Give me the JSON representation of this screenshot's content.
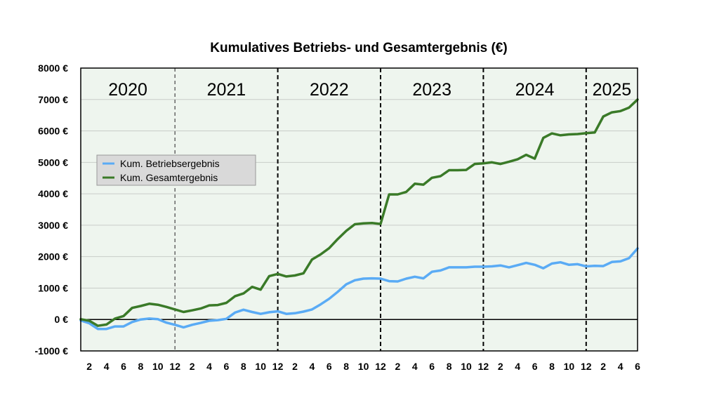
{
  "chart_data": {
    "type": "line",
    "title": "Kumulatives Betriebs- und Gesamtergebnis (€)",
    "xlabel": "",
    "ylabel": "",
    "ylim": [
      -1000,
      8000
    ],
    "y_ticks": [
      -1000,
      0,
      1000,
      2000,
      3000,
      4000,
      5000,
      6000,
      7000,
      8000
    ],
    "y_tick_labels": [
      "-1000 €",
      "0 €",
      "1000 €",
      "2000 €",
      "3000 €",
      "4000 €",
      "5000 €",
      "6000 €",
      "7000 €",
      "8000 €"
    ],
    "x_start_month": "2020-01",
    "x_end_month": "2025-06",
    "x_tick_labels": [
      "2",
      "4",
      "6",
      "8",
      "10",
      "12",
      "2",
      "4",
      "6",
      "8",
      "10",
      "12",
      "2",
      "4",
      "6",
      "8",
      "10",
      "12",
      "2",
      "4",
      "6",
      "8",
      "10",
      "12",
      "2",
      "4",
      "6",
      "8",
      "10",
      "12",
      "2",
      "4",
      "6"
    ],
    "year_labels": [
      "2020",
      "2021",
      "2022",
      "2023",
      "2024",
      "2025"
    ],
    "year_boundaries": [
      "2020-12",
      "2021-12",
      "2022-12",
      "2023-12",
      "2024-12"
    ],
    "grid": true,
    "legend_position": "upper-left",
    "background_color": "#eef5ee",
    "series": [
      {
        "name": "Kum. Betriebsergebnis",
        "color": "#5aabf5",
        "values": [
          -30,
          -120,
          -300,
          -300,
          -220,
          -220,
          -80,
          0,
          30,
          10,
          -100,
          -170,
          -250,
          -170,
          -110,
          -40,
          -20,
          20,
          220,
          310,
          240,
          180,
          230,
          260,
          180,
          200,
          250,
          320,
          480,
          660,
          880,
          1120,
          1250,
          1300,
          1310,
          1300,
          1220,
          1210,
          1300,
          1360,
          1310,
          1520,
          1560,
          1660,
          1660,
          1660,
          1680,
          1680,
          1690,
          1720,
          1660,
          1730,
          1800,
          1740,
          1630,
          1780,
          1820,
          1740,
          1760,
          1690,
          1710,
          1700,
          1830,
          1850,
          1950,
          2260
        ]
      },
      {
        "name": "Kum. Gesamtergebnis",
        "color": "#3a7a28",
        "values": [
          10,
          -40,
          -200,
          -160,
          30,
          110,
          370,
          430,
          500,
          470,
          400,
          320,
          240,
          290,
          350,
          450,
          460,
          530,
          740,
          830,
          1040,
          950,
          1380,
          1450,
          1370,
          1400,
          1470,
          1910,
          2070,
          2270,
          2560,
          2820,
          3030,
          3060,
          3070,
          3040,
          3980,
          3980,
          4060,
          4320,
          4290,
          4510,
          4560,
          4750,
          4750,
          4760,
          4950,
          4970,
          5000,
          4950,
          5020,
          5100,
          5240,
          5120,
          5780,
          5920,
          5860,
          5890,
          5900,
          5930,
          5950,
          6460,
          6590,
          6630,
          6740,
          7000
        ]
      }
    ]
  }
}
